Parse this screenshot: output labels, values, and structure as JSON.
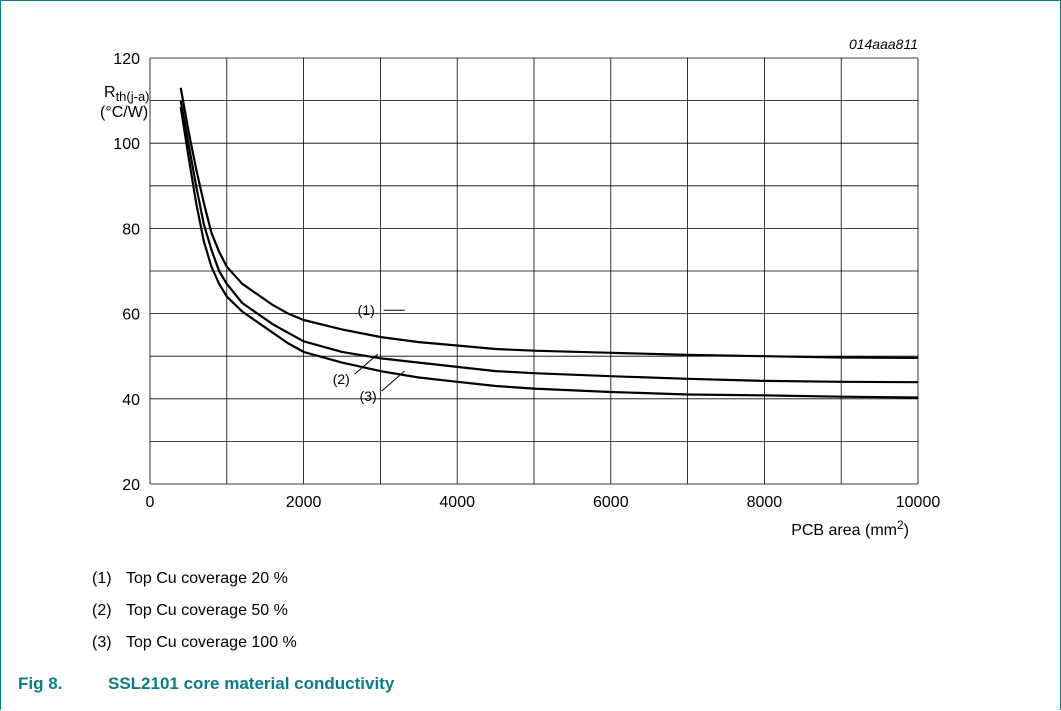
{
  "figure": {
    "id_label": "014aaa811",
    "caption_number": "Fig 8.",
    "caption_title": "SSL2101 core material conductivity"
  },
  "legend": [
    {
      "marker": "(1)",
      "text": "Top Cu coverage 20 %"
    },
    {
      "marker": "(2)",
      "text": "Top Cu coverage 50 %"
    },
    {
      "marker": "(3)",
      "text": "Top Cu coverage 100 %"
    }
  ],
  "chart_data": {
    "type": "line",
    "ylabel_main": "R",
    "ylabel_sub": "th(j-a)",
    "ylabel_unit": "(°C/W)",
    "xlabel_main": "PCB area (mm",
    "xlabel_sup": "2",
    "xlabel_tail": ")",
    "xlim": [
      0,
      10000
    ],
    "ylim": [
      20,
      120
    ],
    "xticks": [
      0,
      2000,
      4000,
      6000,
      8000,
      10000
    ],
    "yticks": [
      20,
      40,
      60,
      80,
      100,
      120
    ],
    "grid": true,
    "series": [
      {
        "name": "(1)",
        "x": [
          400,
          500,
          600,
          700,
          800,
          900,
          1000,
          1200,
          1400,
          1600,
          1800,
          2000,
          2500,
          3000,
          3500,
          4000,
          4500,
          5000,
          6000,
          7000,
          8000,
          9000,
          10000
        ],
        "y": [
          113,
          103,
          94,
          86,
          79,
          74.5,
          71,
          67,
          64.5,
          62,
          60,
          58.5,
          56.3,
          54.5,
          53.3,
          52.5,
          51.7,
          51.3,
          50.8,
          50.3,
          50,
          49.7,
          49.6
        ]
      },
      {
        "name": "(2)",
        "x": [
          400,
          500,
          600,
          700,
          800,
          900,
          1000,
          1200,
          1400,
          1600,
          1800,
          2000,
          2500,
          3000,
          3500,
          4000,
          4500,
          5000,
          6000,
          7000,
          8000,
          9000,
          10000
        ],
        "y": [
          110,
          100,
          90,
          81,
          75,
          70,
          67,
          62.5,
          60,
          57.5,
          55.5,
          53.5,
          51,
          49.5,
          48.5,
          47.5,
          46.5,
          46,
          45.3,
          44.7,
          44.2,
          44,
          43.9
        ]
      },
      {
        "name": "(3)",
        "x": [
          400,
          500,
          600,
          700,
          800,
          900,
          1000,
          1200,
          1400,
          1600,
          1800,
          2000,
          2500,
          3000,
          3500,
          4000,
          4500,
          5000,
          6000,
          7000,
          8000,
          9000,
          10000
        ],
        "y": [
          108.5,
          97,
          86,
          77,
          71,
          67,
          64,
          60.5,
          58,
          55.5,
          53,
          51,
          48.5,
          46.5,
          45,
          44,
          43,
          42.4,
          41.6,
          41,
          40.8,
          40.5,
          40.3
        ]
      }
    ],
    "annotations": [
      {
        "label": "(1)",
        "x": 2600,
        "y": 60.8
      },
      {
        "label": "(2)",
        "x": 2900,
        "y": 50.5
      },
      {
        "label": "(3)",
        "x": 3250,
        "y": 46.5
      }
    ]
  }
}
